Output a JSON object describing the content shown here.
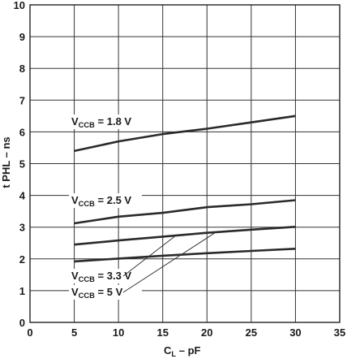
{
  "chart_data": {
    "type": "line",
    "xlabel": {
      "main": "C",
      "sub": "L",
      "rest": " – pF"
    },
    "ylabel": "t PHL – ns",
    "xlim": [
      0,
      35
    ],
    "ylim": [
      0,
      10
    ],
    "xticks": [
      0,
      5,
      10,
      15,
      20,
      25,
      30,
      35
    ],
    "yticks": [
      0,
      1,
      2,
      3,
      4,
      5,
      6,
      7,
      8,
      9,
      10
    ],
    "grid": true,
    "series": [
      {
        "name": {
          "main": "V",
          "sub": "CCB",
          "rest": " = 1.8 V"
        },
        "x": [
          5,
          10,
          15,
          20,
          25,
          30
        ],
        "y": [
          5.4,
          5.7,
          5.93,
          6.1,
          6.3,
          6.5
        ]
      },
      {
        "name": {
          "main": "V",
          "sub": "CCB",
          "rest": " = 2.5 V"
        },
        "x": [
          5,
          10,
          15,
          20,
          25,
          30
        ],
        "y": [
          3.12,
          3.33,
          3.45,
          3.63,
          3.72,
          3.85
        ]
      },
      {
        "name": {
          "main": "V",
          "sub": "CCB",
          "rest": " = 3.3 V"
        },
        "x": [
          5,
          10,
          15,
          20,
          25,
          30
        ],
        "y": [
          2.45,
          2.58,
          2.7,
          2.82,
          2.92,
          3.01
        ]
      },
      {
        "name": {
          "main": "V",
          "sub": "CCB",
          "rest": " = 5 V"
        },
        "x": [
          5,
          10,
          15,
          20,
          25,
          30
        ],
        "y": [
          1.92,
          2.01,
          2.1,
          2.18,
          2.25,
          2.32
        ]
      }
    ]
  }
}
